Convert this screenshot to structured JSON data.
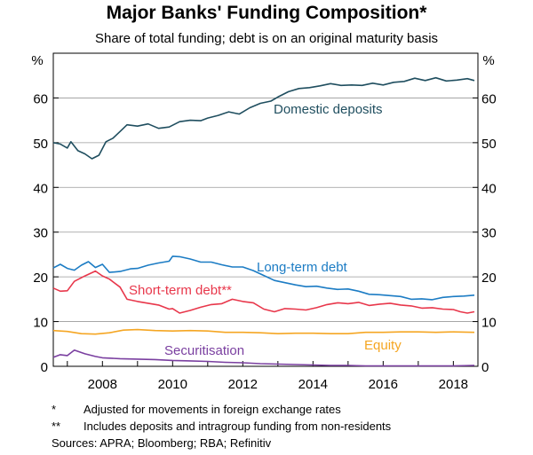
{
  "chart_data": {
    "type": "line",
    "title": "Major Banks' Funding Composition*",
    "subtitle": "Share of total funding; debt is on an original maturity basis",
    "ylabel_left": "%",
    "ylabel_right": "%",
    "ylim": [
      0,
      70
    ],
    "yticks": [
      0,
      10,
      20,
      30,
      40,
      50,
      60
    ],
    "xlim": [
      2006.6,
      2018.7
    ],
    "xticks": [
      2008,
      2010,
      2012,
      2014,
      2016,
      2018
    ],
    "grid": true,
    "series": [
      {
        "name": "Domestic deposits",
        "color": "#1f4e5f",
        "x": [
          2006.6,
          2006.8,
          2007.0,
          2007.1,
          2007.3,
          2007.5,
          2007.7,
          2007.9,
          2008.1,
          2008.3,
          2008.5,
          2008.7,
          2009.0,
          2009.3,
          2009.6,
          2009.9,
          2010.2,
          2010.5,
          2010.8,
          2011.0,
          2011.3,
          2011.6,
          2011.9,
          2012.2,
          2012.5,
          2012.8,
          2013.0,
          2013.3,
          2013.6,
          2013.9,
          2014.2,
          2014.5,
          2014.8,
          2015.1,
          2015.4,
          2015.7,
          2016.0,
          2016.3,
          2016.6,
          2016.9,
          2017.2,
          2017.5,
          2017.8,
          2018.1,
          2018.4,
          2018.6
        ],
        "values": [
          50.0,
          49.7,
          48.8,
          50.2,
          48.2,
          47.5,
          46.4,
          47.2,
          50.2,
          51.0,
          52.5,
          54.0,
          53.7,
          54.2,
          53.2,
          53.5,
          54.7,
          55.0,
          54.9,
          55.5,
          56.1,
          56.9,
          56.4,
          57.8,
          58.8,
          59.3,
          60.2,
          61.4,
          62.1,
          62.3,
          62.7,
          63.2,
          62.8,
          62.9,
          62.8,
          63.3,
          62.9,
          63.5,
          63.7,
          64.4,
          63.9,
          64.5,
          63.8,
          64.0,
          64.3,
          63.9
        ]
      },
      {
        "name": "Long-term debt",
        "color": "#1c7cc4",
        "x": [
          2006.6,
          2006.8,
          2007.0,
          2007.2,
          2007.4,
          2007.6,
          2007.8,
          2008.0,
          2008.2,
          2008.5,
          2008.8,
          2009.0,
          2009.3,
          2009.6,
          2009.9,
          2010.0,
          2010.2,
          2010.5,
          2010.8,
          2011.1,
          2011.4,
          2011.7,
          2012.0,
          2012.3,
          2012.6,
          2012.9,
          2013.2,
          2013.5,
          2013.8,
          2014.1,
          2014.4,
          2014.7,
          2015.0,
          2015.3,
          2015.6,
          2015.9,
          2016.2,
          2016.5,
          2016.8,
          2017.1,
          2017.4,
          2017.7,
          2018.0,
          2018.3,
          2018.6
        ],
        "values": [
          22.0,
          22.8,
          21.9,
          21.5,
          22.6,
          23.4,
          22.1,
          22.8,
          21.0,
          21.2,
          21.8,
          21.9,
          22.6,
          23.1,
          23.5,
          24.6,
          24.5,
          24.0,
          23.3,
          23.3,
          22.7,
          22.2,
          22.2,
          21.4,
          20.3,
          19.2,
          18.7,
          18.2,
          17.8,
          17.9,
          17.5,
          17.2,
          17.3,
          16.8,
          16.1,
          16.0,
          15.8,
          15.6,
          15.0,
          15.1,
          14.9,
          15.4,
          15.6,
          15.7,
          15.9
        ]
      },
      {
        "name": "Short-term debt**",
        "color": "#e8374b",
        "x": [
          2006.6,
          2006.8,
          2007.0,
          2007.2,
          2007.5,
          2007.8,
          2008.0,
          2008.2,
          2008.5,
          2008.7,
          2009.0,
          2009.3,
          2009.6,
          2009.9,
          2010.0,
          2010.2,
          2010.5,
          2010.8,
          2011.1,
          2011.4,
          2011.7,
          2012.0,
          2012.3,
          2012.6,
          2012.9,
          2013.2,
          2013.5,
          2013.8,
          2014.1,
          2014.4,
          2014.7,
          2015.0,
          2015.3,
          2015.6,
          2015.9,
          2016.2,
          2016.5,
          2016.8,
          2017.1,
          2017.4,
          2017.7,
          2018.0,
          2018.2,
          2018.4,
          2018.6
        ],
        "values": [
          17.5,
          16.8,
          16.9,
          19.0,
          20.2,
          21.3,
          20.2,
          19.5,
          17.7,
          15.0,
          14.5,
          14.1,
          13.7,
          12.8,
          12.9,
          11.9,
          12.5,
          13.2,
          13.8,
          14.0,
          15.0,
          14.5,
          14.2,
          12.8,
          12.2,
          12.9,
          12.8,
          12.6,
          13.1,
          13.8,
          14.2,
          14.0,
          14.3,
          13.6,
          13.9,
          14.1,
          13.7,
          13.5,
          13.0,
          13.1,
          12.8,
          12.7,
          12.2,
          11.9,
          12.2
        ]
      },
      {
        "name": "Equity",
        "color": "#f5a623",
        "x": [
          2006.6,
          2007.0,
          2007.4,
          2007.8,
          2008.2,
          2008.6,
          2009.0,
          2009.5,
          2010.0,
          2010.5,
          2011.0,
          2011.5,
          2012.0,
          2012.5,
          2013.0,
          2013.5,
          2014.0,
          2014.5,
          2015.0,
          2015.5,
          2016.0,
          2016.5,
          2017.0,
          2017.5,
          2018.0,
          2018.6
        ],
        "values": [
          8.0,
          7.8,
          7.3,
          7.2,
          7.5,
          8.1,
          8.2,
          8.0,
          7.9,
          8.0,
          7.9,
          7.6,
          7.6,
          7.5,
          7.3,
          7.4,
          7.4,
          7.3,
          7.3,
          7.6,
          7.6,
          7.7,
          7.7,
          7.6,
          7.7,
          7.6
        ]
      },
      {
        "name": "Securitisation",
        "color": "#7a3fa0",
        "x": [
          2006.6,
          2006.8,
          2007.0,
          2007.2,
          2007.5,
          2007.8,
          2008.0,
          2008.5,
          2009.0,
          2009.5,
          2010.0,
          2010.5,
          2011.0,
          2011.5,
          2012.0,
          2012.5,
          2013.0,
          2013.5,
          2014.0,
          2014.5,
          2015.0,
          2015.5,
          2016.0,
          2016.5,
          2017.0,
          2017.5,
          2018.0,
          2018.6
        ],
        "values": [
          2.0,
          2.6,
          2.4,
          3.6,
          2.8,
          2.2,
          1.9,
          1.7,
          1.6,
          1.5,
          1.3,
          1.2,
          1.1,
          0.9,
          0.8,
          0.6,
          0.5,
          0.4,
          0.3,
          0.2,
          0.2,
          0.1,
          0.1,
          0.1,
          0.1,
          0.1,
          0.1,
          0.2
        ]
      }
    ]
  },
  "notes": [
    {
      "mark": "*",
      "text": "Adjusted for movements in foreign exchange rates"
    },
    {
      "mark": "**",
      "text": "Includes deposits and intragroup funding from non-residents"
    }
  ],
  "sources": "Sources:   APRA; Bloomberg; RBA; Refinitiv"
}
